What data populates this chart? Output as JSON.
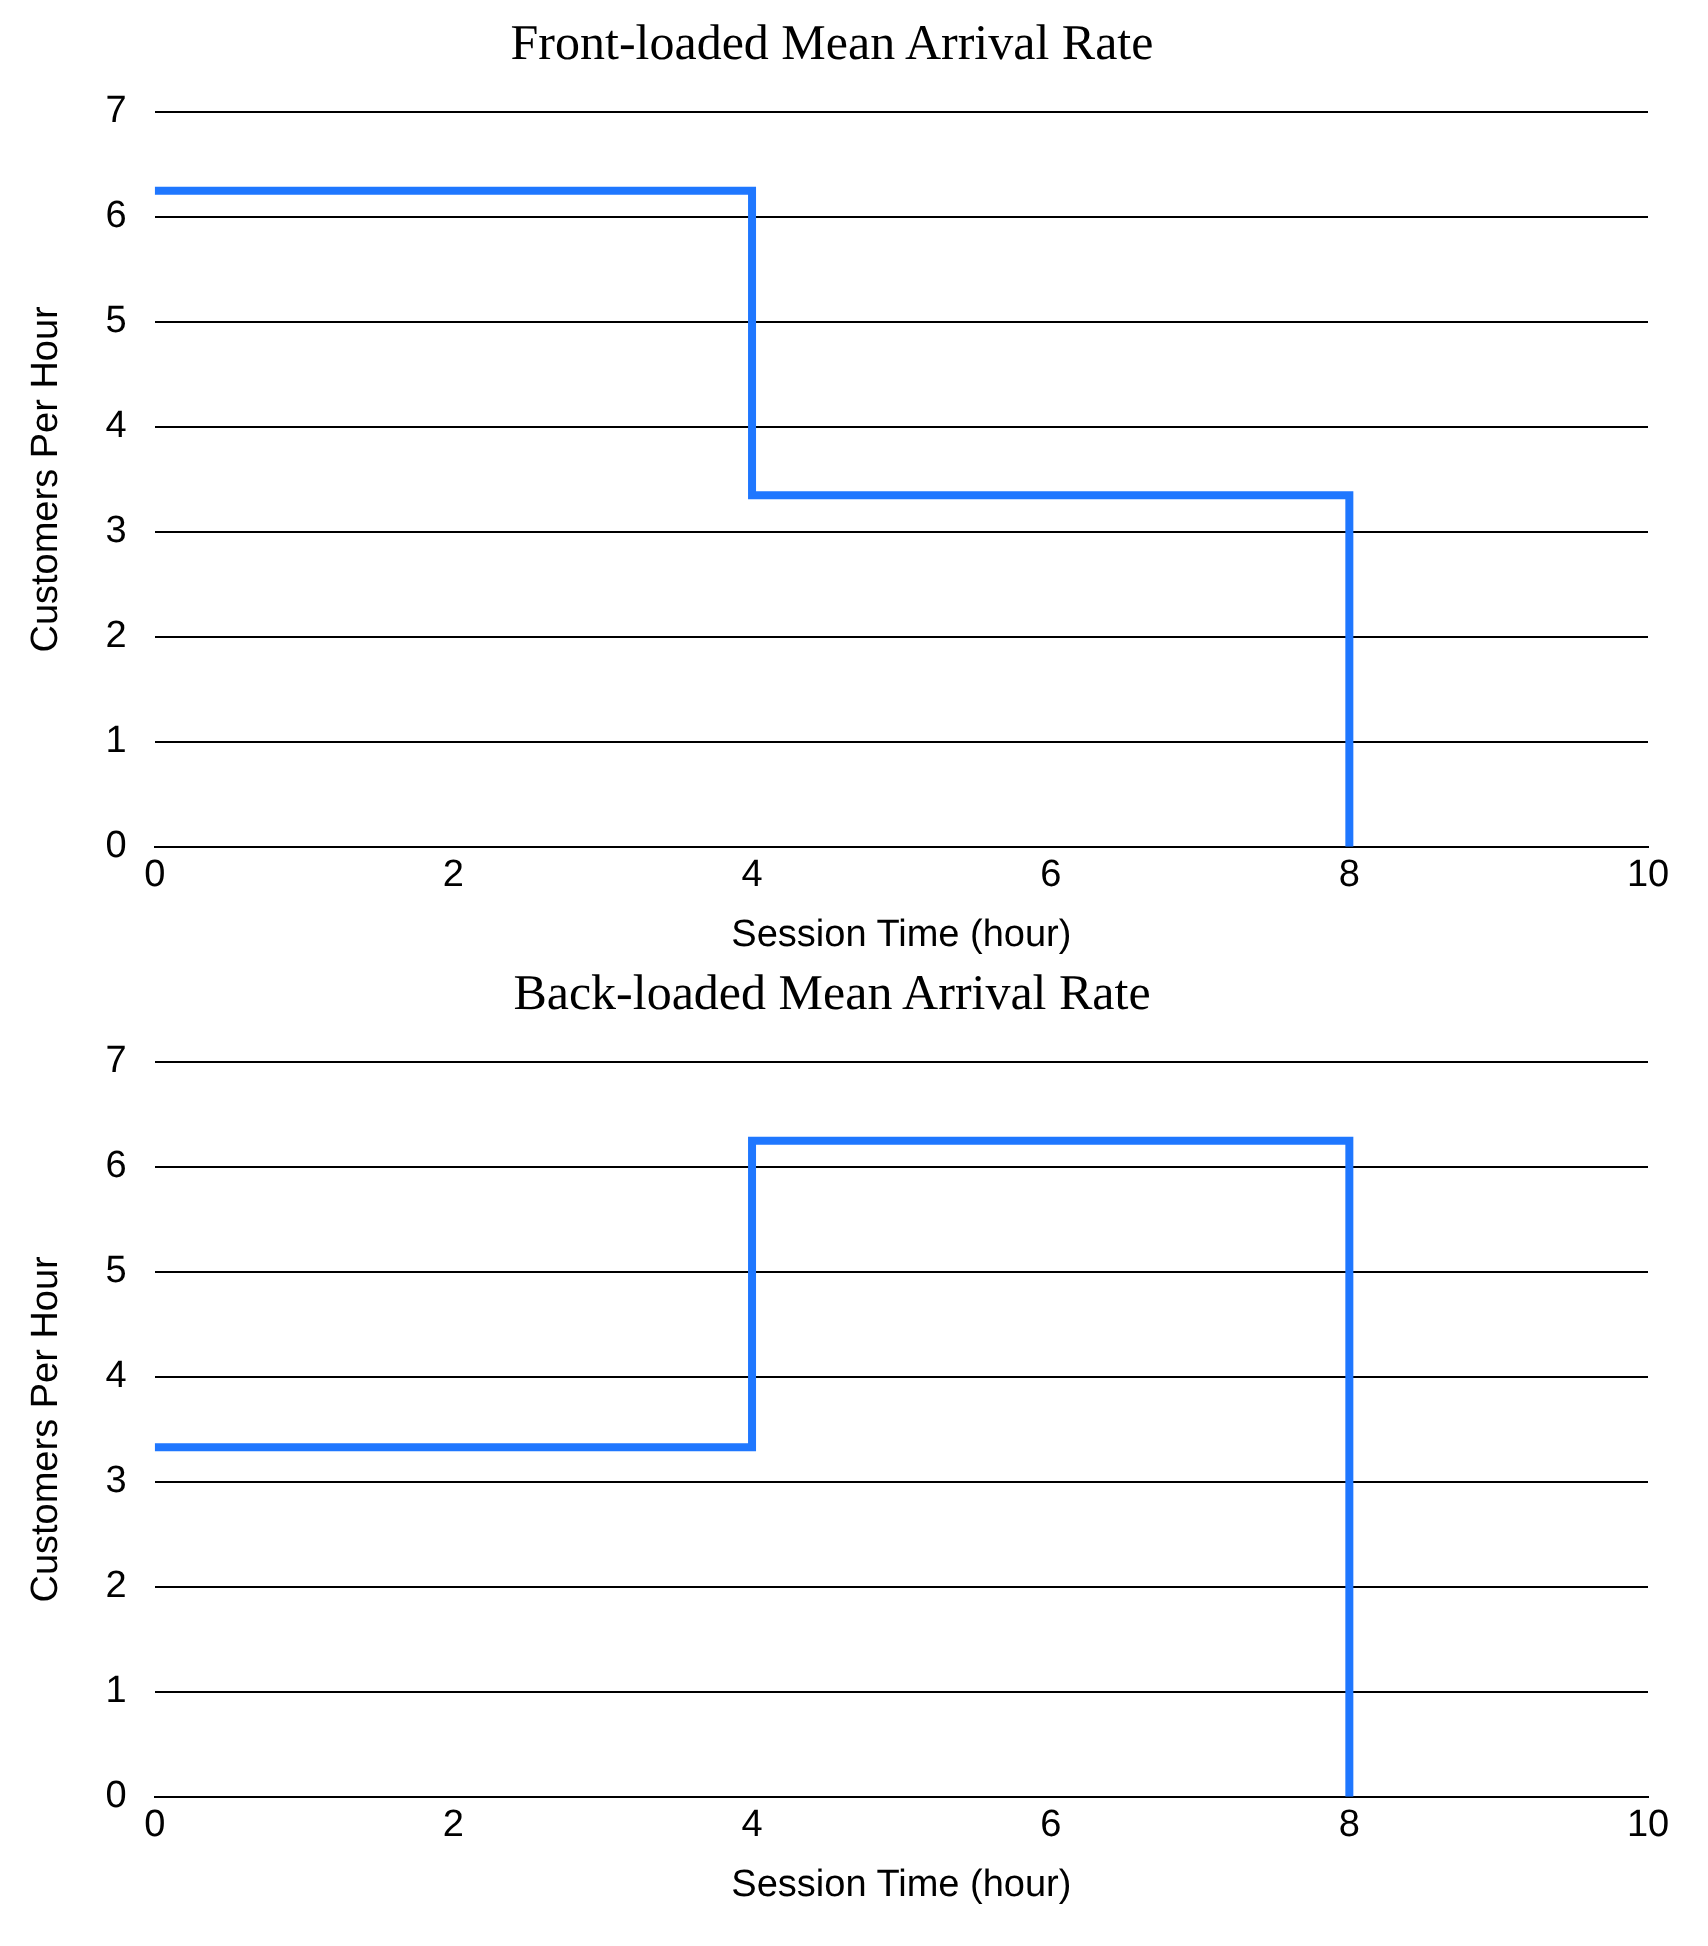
{
  "chart_data": [
    {
      "type": "step",
      "title": "Front-loaded Mean Arrival Rate",
      "xlabel": "Session Time (hour)",
      "ylabel": "Customers Per Hour",
      "x": [
        0,
        4,
        8,
        8
      ],
      "series": [
        {
          "color": "#1f77ff",
          "values": [
            6.25,
            3.35,
            0,
            0
          ]
        }
      ],
      "xlim": [
        0,
        10
      ],
      "xticks": [
        0,
        2,
        4,
        6,
        8,
        10
      ],
      "ylim": [
        0,
        7
      ],
      "yticks": [
        0,
        1,
        2,
        3,
        4,
        5,
        6,
        7
      ],
      "grid": "y",
      "legend": false
    },
    {
      "type": "step",
      "title": "Back-loaded Mean Arrival Rate",
      "xlabel": "Session Time (hour)",
      "ylabel": "Customers Per Hour",
      "x": [
        0,
        4,
        8,
        8
      ],
      "series": [
        {
          "color": "#1f77ff",
          "values": [
            3.33,
            6.25,
            0,
            0
          ]
        }
      ],
      "xlim": [
        0,
        10
      ],
      "xticks": [
        0,
        2,
        4,
        6,
        8,
        10
      ],
      "ylim": [
        0,
        7
      ],
      "yticks": [
        0,
        1,
        2,
        3,
        4,
        5,
        6,
        7
      ],
      "grid": "y",
      "legend": false
    }
  ]
}
